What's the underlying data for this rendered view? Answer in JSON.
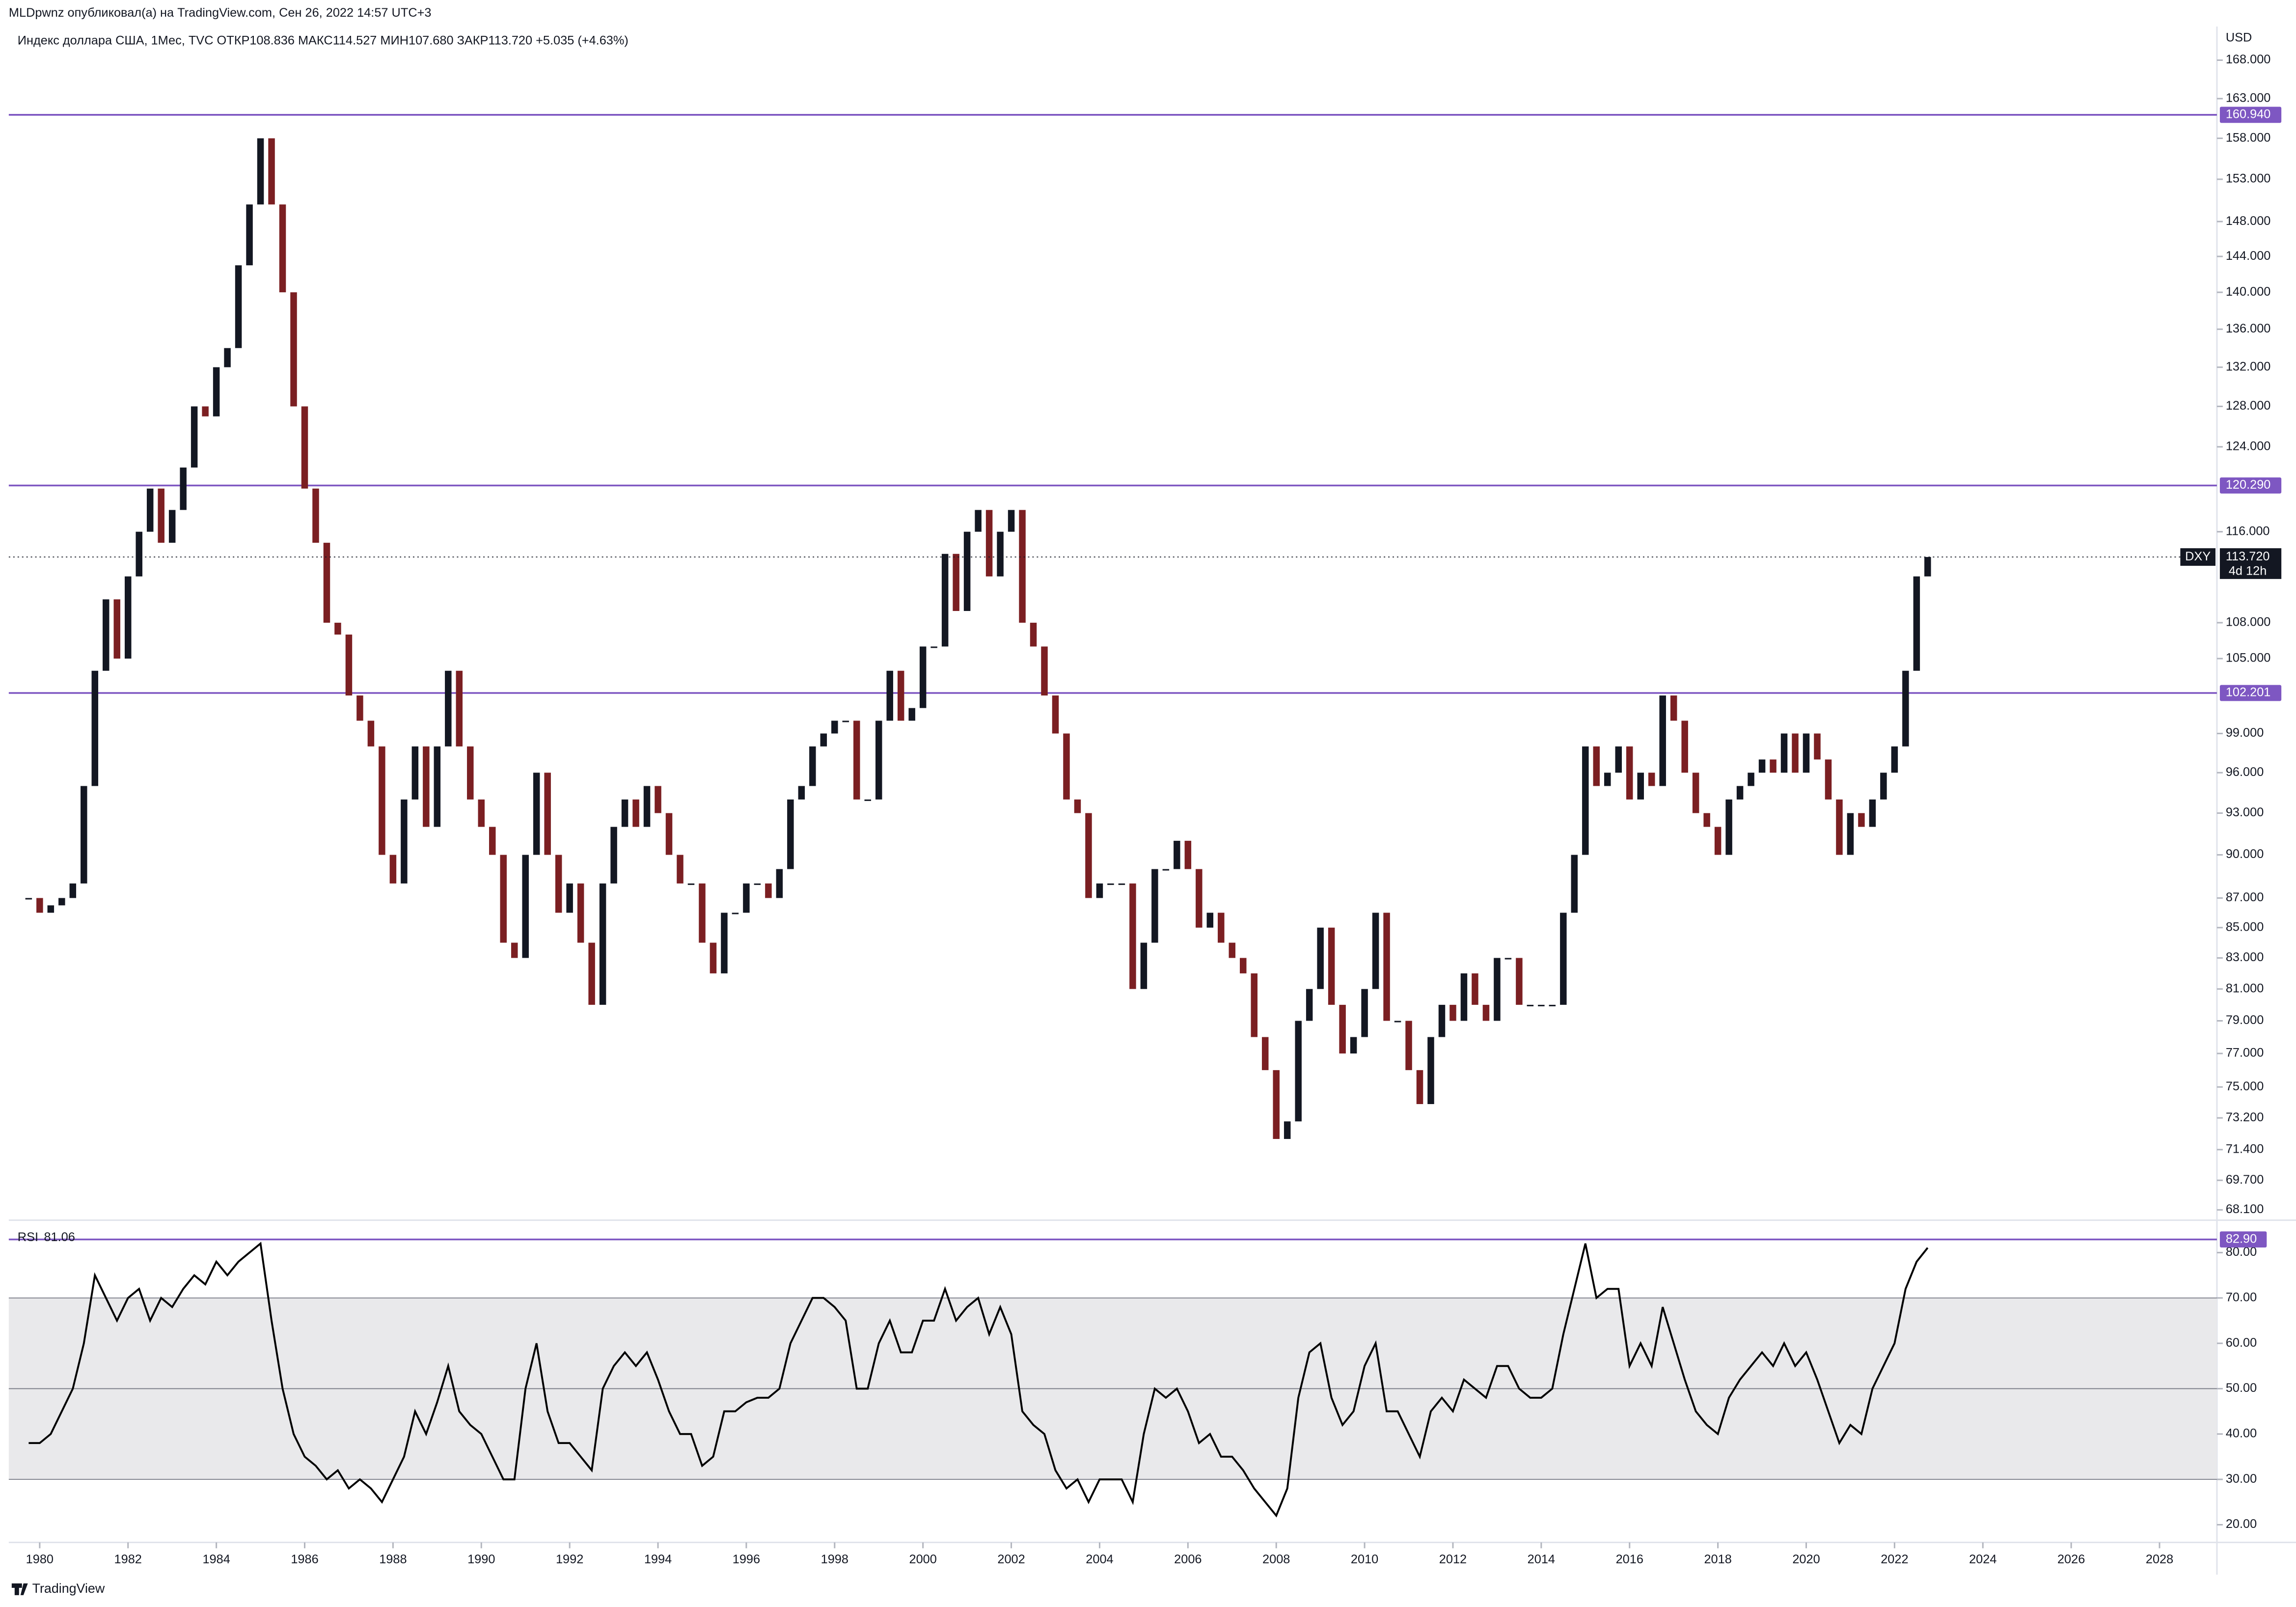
{
  "header": {
    "author_line": "MLDpwnz опубликовал(а) на TradingView.com, Сен 26, 2022 14:57 UTC+3",
    "symbol_line": "Индекс доллара США, 1Мес, TVC  ОТКР108.836  МАКС114.527  МИН107.680  ЗАКР113.720  +5.035 (+4.63%)"
  },
  "footer": "TradingView",
  "chart_data": [
    {
      "type": "candlestick",
      "currency": "USD",
      "x": [
        1979.75,
        1980,
        1980.25,
        1980.5,
        1980.75,
        1981,
        1981.25,
        1981.5,
        1981.75,
        1982,
        1982.25,
        1982.5,
        1982.75,
        1983,
        1983.25,
        1983.5,
        1983.75,
        1984,
        1984.25,
        1984.5,
        1984.75,
        1985,
        1985.25,
        1985.5,
        1985.75,
        1986,
        1986.25,
        1986.5,
        1986.75,
        1987,
        1987.25,
        1987.5,
        1987.75,
        1988,
        1988.25,
        1988.5,
        1988.75,
        1989,
        1989.25,
        1989.5,
        1989.75,
        1990,
        1990.25,
        1990.5,
        1990.75,
        1991,
        1991.25,
        1991.5,
        1991.75,
        1992,
        1992.25,
        1992.5,
        1992.75,
        1993,
        1993.25,
        1993.5,
        1993.75,
        1994,
        1994.25,
        1994.5,
        1994.75,
        1995,
        1995.25,
        1995.5,
        1995.75,
        1996,
        1996.25,
        1996.5,
        1996.75,
        1997,
        1997.25,
        1997.5,
        1997.75,
        1998,
        1998.25,
        1998.5,
        1998.75,
        1999,
        1999.25,
        1999.5,
        1999.75,
        2000,
        2000.25,
        2000.5,
        2000.75,
        2001,
        2001.25,
        2001.5,
        2001.75,
        2002,
        2002.25,
        2002.5,
        2002.75,
        2003,
        2003.25,
        2003.5,
        2003.75,
        2004,
        2004.25,
        2004.5,
        2004.75,
        2005,
        2005.25,
        2005.5,
        2005.75,
        2006,
        2006.25,
        2006.5,
        2006.75,
        2007,
        2007.25,
        2007.5,
        2007.75,
        2008,
        2008.25,
        2008.5,
        2008.75,
        2009,
        2009.25,
        2009.5,
        2009.75,
        2010,
        2010.25,
        2010.5,
        2010.75,
        2011,
        2011.25,
        2011.5,
        2011.75,
        2012,
        2012.25,
        2012.5,
        2012.75,
        2013,
        2013.25,
        2013.5,
        2013.75,
        2014,
        2014.25,
        2014.5,
        2014.75,
        2015,
        2015.25,
        2015.5,
        2015.75,
        2016,
        2016.25,
        2016.5,
        2016.75,
        2017,
        2017.25,
        2017.5,
        2017.75,
        2018,
        2018.25,
        2018.5,
        2018.75,
        2019,
        2019.25,
        2019.5,
        2019.75,
        2020,
        2020.25,
        2020.5,
        2020.75,
        2021,
        2021.25,
        2021.5,
        2021.75,
        2022,
        2022.25,
        2022.5,
        2022.75
      ],
      "values": [
        87,
        86,
        86.5,
        87,
        88,
        95,
        104,
        110,
        105,
        112,
        116,
        120,
        115,
        118,
        122,
        128,
        127,
        132,
        134,
        143,
        150,
        158,
        150,
        140,
        128,
        120,
        115,
        108,
        107,
        102,
        100,
        98,
        90,
        88,
        94,
        98,
        92,
        98,
        104,
        98,
        94,
        92,
        90,
        84,
        83,
        90,
        96,
        90,
        86,
        88,
        84,
        80,
        88,
        92,
        94,
        92,
        95,
        93,
        90,
        88,
        88,
        84,
        82,
        86,
        86,
        88,
        88,
        87,
        89,
        94,
        95,
        98,
        99,
        100,
        100,
        94,
        94,
        100,
        104,
        100,
        101,
        106,
        106,
        114,
        109,
        116,
        118,
        112,
        116,
        118,
        108,
        106,
        102,
        99,
        94,
        93,
        87,
        88,
        88,
        88,
        81,
        84,
        89,
        89,
        91,
        89,
        85,
        86,
        84,
        83,
        82,
        78,
        76,
        72,
        73,
        79,
        81,
        85,
        80,
        77,
        78,
        81,
        86,
        79,
        79,
        76,
        74,
        78,
        80,
        79,
        82,
        80,
        79,
        83,
        83,
        80,
        80,
        80,
        80,
        86,
        90,
        98,
        95,
        96,
        98,
        94,
        96,
        95,
        102,
        100,
        96,
        93,
        92,
        90,
        94,
        95,
        96,
        97,
        96,
        99,
        96,
        99,
        97,
        94,
        90,
        93,
        92,
        94,
        96,
        98,
        104,
        112,
        113.72
      ],
      "colors": {
        "up": "#131722",
        "down": "#7b1f22"
      },
      "log_scale": true,
      "xlim": [
        1979.3,
        2029.3
      ],
      "xticks": [
        1980,
        1982,
        1984,
        1986,
        1988,
        1990,
        1992,
        1994,
        1996,
        1998,
        2000,
        2002,
        2004,
        2006,
        2008,
        2010,
        2012,
        2014,
        2016,
        2018,
        2020,
        2022,
        2024,
        2026,
        2028
      ],
      "ylim": [
        67.55,
        172.5
      ],
      "yticks": [
        {
          "value": 168,
          "label": "168.000"
        },
        {
          "value": 163,
          "label": "163.000"
        },
        {
          "value": 158,
          "label": "158.000"
        },
        {
          "value": 153,
          "label": "153.000"
        },
        {
          "value": 148,
          "label": "148.000"
        },
        {
          "value": 144,
          "label": "144.000"
        },
        {
          "value": 140,
          "label": "140.000"
        },
        {
          "value": 136,
          "label": "136.000"
        },
        {
          "value": 132,
          "label": "132.000"
        },
        {
          "value": 128,
          "label": "128.000"
        },
        {
          "value": 124,
          "label": "124.000"
        },
        {
          "value": 116,
          "label": "116.000"
        },
        {
          "value": 108,
          "label": "108.000"
        },
        {
          "value": 105,
          "label": "105.000"
        },
        {
          "value": 99,
          "label": "99.000"
        },
        {
          "value": 96,
          "label": "96.000"
        },
        {
          "value": 93,
          "label": "93.000"
        },
        {
          "value": 90,
          "label": "90.000"
        },
        {
          "value": 87,
          "label": "87.000"
        },
        {
          "value": 85,
          "label": "85.000"
        },
        {
          "value": 83,
          "label": "83.000"
        },
        {
          "value": 81,
          "label": "81.000"
        },
        {
          "value": 79,
          "label": "79.000"
        },
        {
          "value": 77,
          "label": "77.000"
        },
        {
          "value": 75,
          "label": "75.000"
        },
        {
          "value": 73.2,
          "label": "73.200"
        },
        {
          "value": 71.4,
          "label": "71.400"
        },
        {
          "value": 69.7,
          "label": "69.700"
        },
        {
          "value": 68.1,
          "label": "68.100"
        }
      ],
      "hline_color": "#7e57c2",
      "hlines": [
        {
          "value": 160.94,
          "label": "160.940"
        },
        {
          "value": 120.29,
          "label": "120.290"
        },
        {
          "value": 102.201,
          "label": "102.201"
        }
      ],
      "last": {
        "name": "DXY",
        "value": 113.72,
        "label": "113.720",
        "countdown": "4d 12h"
      }
    },
    {
      "type": "line",
      "name": "RSI",
      "legend_value": 81.06,
      "color": "#000000",
      "x": [
        1979.75,
        1980,
        1980.25,
        1980.5,
        1980.75,
        1981,
        1981.25,
        1981.5,
        1981.75,
        1982,
        1982.25,
        1982.5,
        1982.75,
        1983,
        1983.25,
        1983.5,
        1983.75,
        1984,
        1984.25,
        1984.5,
        1984.75,
        1985,
        1985.25,
        1985.5,
        1985.75,
        1986,
        1986.25,
        1986.5,
        1986.75,
        1987,
        1987.25,
        1987.5,
        1987.75,
        1988,
        1988.25,
        1988.5,
        1988.75,
        1989,
        1989.25,
        1989.5,
        1989.75,
        1990,
        1990.25,
        1990.5,
        1990.75,
        1991,
        1991.25,
        1991.5,
        1991.75,
        1992,
        1992.25,
        1992.5,
        1992.75,
        1993,
        1993.25,
        1993.5,
        1993.75,
        1994,
        1994.25,
        1994.5,
        1994.75,
        1995,
        1995.25,
        1995.5,
        1995.75,
        1996,
        1996.25,
        1996.5,
        1996.75,
        1997,
        1997.25,
        1997.5,
        1997.75,
        1998,
        1998.25,
        1998.5,
        1998.75,
        1999,
        1999.25,
        1999.5,
        1999.75,
        2000,
        2000.25,
        2000.5,
        2000.75,
        2001,
        2001.25,
        2001.5,
        2001.75,
        2002,
        2002.25,
        2002.5,
        2002.75,
        2003,
        2003.25,
        2003.5,
        2003.75,
        2004,
        2004.25,
        2004.5,
        2004.75,
        2005,
        2005.25,
        2005.5,
        2005.75,
        2006,
        2006.25,
        2006.5,
        2006.75,
        2007,
        2007.25,
        2007.5,
        2007.75,
        2008,
        2008.25,
        2008.5,
        2008.75,
        2009,
        2009.25,
        2009.5,
        2009.75,
        2010,
        2010.25,
        2010.5,
        2010.75,
        2011,
        2011.25,
        2011.5,
        2011.75,
        2012,
        2012.25,
        2012.5,
        2012.75,
        2013,
        2013.25,
        2013.5,
        2013.75,
        2014,
        2014.25,
        2014.5,
        2014.75,
        2015,
        2015.25,
        2015.5,
        2015.75,
        2016,
        2016.25,
        2016.5,
        2016.75,
        2017,
        2017.25,
        2017.5,
        2017.75,
        2018,
        2018.25,
        2018.5,
        2018.75,
        2019,
        2019.25,
        2019.5,
        2019.75,
        2020,
        2020.25,
        2020.5,
        2020.75,
        2021,
        2021.25,
        2021.5,
        2021.75,
        2022,
        2022.25,
        2022.5,
        2022.75
      ],
      "values": [
        38,
        38,
        40,
        45,
        50,
        60,
        75,
        70,
        65,
        70,
        72,
        65,
        70,
        68,
        72,
        75,
        73,
        78,
        75,
        78,
        80,
        82,
        65,
        50,
        40,
        35,
        33,
        30,
        32,
        28,
        30,
        28,
        25,
        30,
        35,
        45,
        40,
        47,
        55,
        45,
        42,
        40,
        35,
        30,
        30,
        50,
        60,
        45,
        38,
        38,
        35,
        32,
        50,
        55,
        58,
        55,
        58,
        52,
        45,
        40,
        40,
        33,
        35,
        45,
        45,
        47,
        48,
        48,
        50,
        60,
        65,
        70,
        70,
        68,
        65,
        50,
        50,
        60,
        65,
        58,
        58,
        65,
        65,
        72,
        65,
        68,
        70,
        62,
        68,
        62,
        45,
        42,
        40,
        32,
        28,
        30,
        25,
        30,
        30,
        30,
        25,
        40,
        50,
        48,
        50,
        45,
        38,
        40,
        35,
        35,
        32,
        28,
        25,
        22,
        28,
        48,
        58,
        60,
        48,
        42,
        45,
        55,
        60,
        45,
        45,
        40,
        35,
        45,
        48,
        45,
        52,
        50,
        48,
        55,
        55,
        50,
        48,
        48,
        50,
        62,
        72,
        82,
        70,
        72,
        72,
        55,
        60,
        55,
        68,
        60,
        52,
        45,
        42,
        40,
        48,
        52,
        55,
        58,
        55,
        60,
        55,
        58,
        52,
        45,
        38,
        42,
        40,
        50,
        55,
        60,
        72,
        78,
        81.06
      ],
      "xlim": [
        1979.3,
        2029.3
      ],
      "ylim": [
        16.1,
        86.5
      ],
      "yticks": [
        {
          "value": 80,
          "label": "80.00"
        },
        {
          "value": 70,
          "label": "70.00"
        },
        {
          "value": 60,
          "label": "60.00"
        },
        {
          "value": 50,
          "label": "50.00"
        },
        {
          "value": 40,
          "label": "40.00"
        },
        {
          "value": 30,
          "label": "30.00"
        },
        {
          "value": 20,
          "label": "20.00"
        }
      ],
      "levels": [
        70,
        50,
        30
      ],
      "band_color": "#e9e9eb",
      "hline_color": "#7e57c2",
      "hlines": [
        {
          "value": 82.9,
          "label": "82.90"
        }
      ]
    }
  ]
}
